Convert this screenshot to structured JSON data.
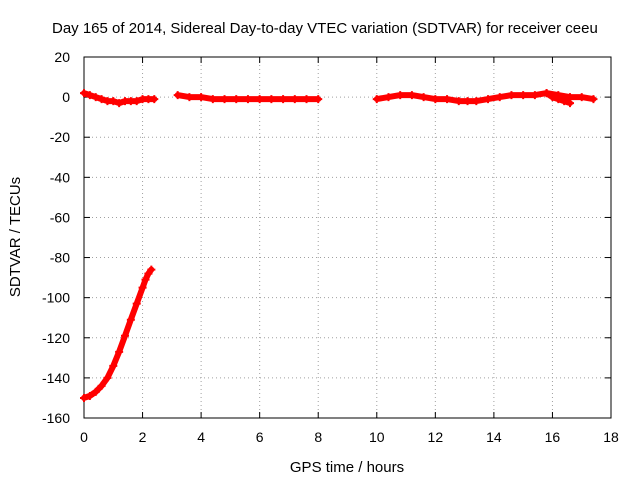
{
  "chart_data": {
    "type": "scatter",
    "title": "Day 165 of 2014, Sidereal Day-to-day VTEC variation (SDTVAR) for receiver ceeu",
    "xlabel": "GPS time / hours",
    "ylabel": "SDTVAR / TECUs",
    "xlim": [
      0,
      18
    ],
    "ylim": [
      -160,
      20
    ],
    "xticks": [
      0,
      2,
      4,
      6,
      8,
      10,
      12,
      14,
      16,
      18
    ],
    "yticks": [
      20,
      0,
      -20,
      -40,
      -60,
      -80,
      -100,
      -120,
      -140,
      -160
    ],
    "grid": true,
    "color": "#ff0000",
    "series": [
      {
        "name": "arc-decay",
        "points": [
          [
            0.0,
            -150
          ],
          [
            0.2,
            -149
          ],
          [
            0.4,
            -147
          ],
          [
            0.6,
            -144
          ],
          [
            0.8,
            -140
          ],
          [
            1.0,
            -134
          ],
          [
            1.2,
            -127
          ],
          [
            1.4,
            -119
          ],
          [
            1.6,
            -111
          ],
          [
            1.8,
            -103
          ],
          [
            2.0,
            -95
          ],
          [
            2.1,
            -91
          ],
          [
            2.2,
            -88
          ],
          [
            2.3,
            -86
          ]
        ]
      },
      {
        "name": "arc-early",
        "points": [
          [
            0.0,
            2
          ],
          [
            0.2,
            1
          ],
          [
            0.4,
            0
          ],
          [
            0.6,
            -1
          ],
          [
            0.8,
            -2
          ],
          [
            1.0,
            -2
          ],
          [
            1.2,
            -3
          ],
          [
            1.4,
            -2
          ],
          [
            1.6,
            -2
          ],
          [
            1.8,
            -2
          ],
          [
            2.0,
            -1
          ],
          [
            2.2,
            -1
          ],
          [
            2.4,
            -1
          ]
        ]
      },
      {
        "name": "arc-day",
        "points": [
          [
            3.2,
            1
          ],
          [
            3.6,
            0
          ],
          [
            4.0,
            0
          ],
          [
            4.4,
            -1
          ],
          [
            4.8,
            -1
          ],
          [
            5.2,
            -1
          ],
          [
            5.6,
            -1
          ],
          [
            6.0,
            -1
          ],
          [
            6.4,
            -1
          ],
          [
            6.8,
            -1
          ],
          [
            7.2,
            -1
          ],
          [
            7.6,
            -1
          ],
          [
            8.0,
            -1
          ]
        ]
      },
      {
        "name": "arc-late",
        "points": [
          [
            10.0,
            -1
          ],
          [
            10.4,
            0
          ],
          [
            10.8,
            1
          ],
          [
            11.2,
            1
          ],
          [
            11.6,
            0
          ],
          [
            12.0,
            -1
          ],
          [
            12.4,
            -1
          ],
          [
            12.8,
            -2
          ],
          [
            13.1,
            -2
          ],
          [
            13.4,
            -2
          ],
          [
            13.8,
            -1
          ],
          [
            14.2,
            0
          ],
          [
            14.6,
            1
          ],
          [
            15.0,
            1
          ],
          [
            15.4,
            1
          ],
          [
            15.8,
            2
          ],
          [
            16.2,
            1
          ],
          [
            16.6,
            0
          ],
          [
            17.0,
            0
          ],
          [
            17.4,
            -1
          ]
        ]
      },
      {
        "name": "arc-spike",
        "points": [
          [
            15.8,
            2
          ],
          [
            16.0,
            0
          ],
          [
            16.2,
            -1
          ],
          [
            16.4,
            -2
          ],
          [
            16.6,
            -3
          ]
        ]
      }
    ]
  }
}
